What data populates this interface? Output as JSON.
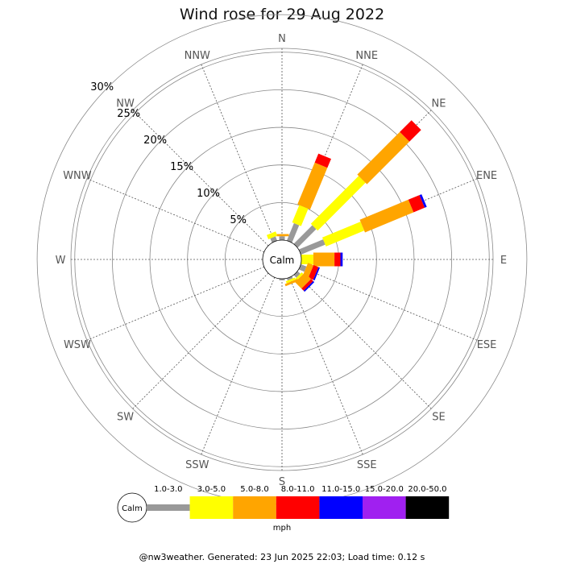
{
  "chart_data": {
    "type": "wind-rose",
    "title": "Wind rose for 29 Aug 2022",
    "center_label": "Calm",
    "directions": [
      "N",
      "NNE",
      "NE",
      "ENE",
      "E",
      "ESE",
      "SE",
      "SSE",
      "S",
      "SSW",
      "SW",
      "WSW",
      "W",
      "WNW",
      "NW",
      "NNW"
    ],
    "radial_ticks": [
      "5%",
      "10%",
      "15%",
      "20%",
      "25%",
      "30%"
    ],
    "radial_max": 30,
    "bins": [
      {
        "label": "1.0-3.0",
        "color": "#999999"
      },
      {
        "label": "3.0-5.0",
        "color": "#ffff00"
      },
      {
        "label": "5.0-8.0",
        "color": "#ffa500"
      },
      {
        "label": "8.0-11.0",
        "color": "#ff0000"
      },
      {
        "label": "11.0-15.0",
        "color": "#0000ff"
      },
      {
        "label": "15.0-20.0",
        "color": "#a020f0"
      },
      {
        "label": "20.0-50.0",
        "color": "#000000"
      }
    ],
    "unit": "mph",
    "series": [
      {
        "direction": "N",
        "values": [
          0.5,
          0.0,
          0.3,
          0.0,
          0,
          0,
          0
        ]
      },
      {
        "direction": "NNE",
        "values": [
          2.5,
          2.5,
          6.0,
          1.3,
          0,
          0,
          0
        ]
      },
      {
        "direction": "NE",
        "values": [
          3.5,
          9.0,
          8.0,
          2.2,
          0,
          0,
          0
        ]
      },
      {
        "direction": "ENE",
        "values": [
          3.5,
          5.5,
          7.0,
          1.6,
          0.3,
          0,
          0
        ]
      },
      {
        "direction": "E",
        "values": [
          0.0,
          1.6,
          2.8,
          0.8,
          0.3,
          0,
          0
        ]
      },
      {
        "direction": "ESE",
        "values": [
          0.8,
          0.0,
          0.8,
          0.7,
          0.2,
          0,
          0
        ]
      },
      {
        "direction": "SE",
        "values": [
          0.5,
          0.3,
          1.2,
          0.4,
          0.2,
          0,
          0
        ]
      },
      {
        "direction": "SSE",
        "values": [
          0.3,
          0.3,
          0.3,
          0.0,
          0,
          0,
          0
        ]
      },
      {
        "direction": "S",
        "values": [
          0.2,
          0,
          0,
          0,
          0,
          0,
          0
        ]
      },
      {
        "direction": "SSW",
        "values": [
          0.0,
          0,
          0,
          0,
          0,
          0,
          0
        ]
      },
      {
        "direction": "SW",
        "values": [
          0.0,
          0,
          0,
          0,
          0,
          0,
          0
        ]
      },
      {
        "direction": "WSW",
        "values": [
          0.0,
          0,
          0,
          0,
          0,
          0,
          0
        ]
      },
      {
        "direction": "W",
        "values": [
          0.0,
          0,
          0,
          0,
          0,
          0,
          0
        ]
      },
      {
        "direction": "WNW",
        "values": [
          0.0,
          0,
          0,
          0,
          0,
          0,
          0
        ]
      },
      {
        "direction": "NW",
        "values": [
          0.0,
          0,
          0,
          0,
          0,
          0,
          0
        ]
      },
      {
        "direction": "NNW",
        "values": [
          0.6,
          0.6,
          0,
          0,
          0,
          0,
          0
        ]
      }
    ]
  },
  "footer": "@nw3weather. Generated: 23 Jun 2025 22:03; Load time: 0.12 s"
}
